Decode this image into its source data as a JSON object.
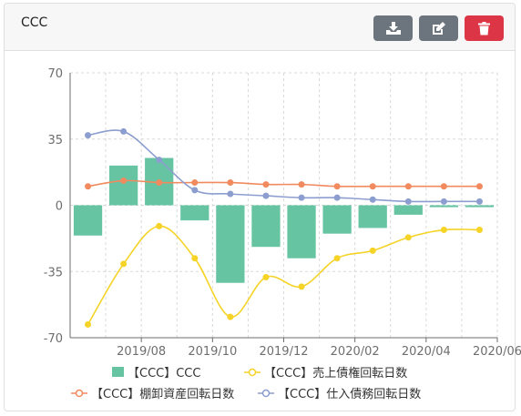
{
  "card": {
    "title": "CCC"
  },
  "toolbar": {
    "download_icon": "download-icon",
    "edit_icon": "edit-icon",
    "delete_icon": "trash-icon"
  },
  "colors": {
    "bar": "#66c4a3",
    "sales_receivable": "#f5d327",
    "inventory": "#f18a5e",
    "payable": "#8c9ecf",
    "btn_gray": "#6c757d",
    "btn_red": "#dc3545"
  },
  "chart_data": {
    "type": "bar",
    "x_tick_labels": [
      "2019/08",
      "2019/10",
      "2019/12",
      "2020/02",
      "2020/04",
      "2020/06"
    ],
    "ylim": [
      -70,
      70
    ],
    "y_ticks": [
      70,
      35,
      0,
      -35,
      -70
    ],
    "grid": true,
    "legend_position": "bottom",
    "categories": [
      "2019/07",
      "2019/08",
      "2019/09",
      "2019/10",
      "2019/11",
      "2019/12",
      "2020/01",
      "2020/02",
      "2020/03",
      "2020/04",
      "2020/05",
      "2020/06"
    ],
    "series": [
      {
        "name": "【CCC】CCC",
        "type": "bar",
        "values": [
          -16,
          21,
          25,
          -8,
          -41,
          -22,
          -28,
          -15,
          -12,
          -5,
          -1,
          -1
        ]
      },
      {
        "name": "【CCC】売上債権回転日数",
        "type": "line",
        "values": [
          -63,
          -31,
          -11,
          -28,
          -59,
          -38,
          -43,
          -28,
          -24,
          -17,
          -13,
          -13
        ]
      },
      {
        "name": "【CCC】棚卸資産回転日数",
        "type": "line",
        "values": [
          10,
          13,
          12,
          12,
          12,
          11,
          11,
          10,
          10,
          10,
          10,
          10
        ]
      },
      {
        "name": "【CCC】仕入債務回転日数",
        "type": "line",
        "values": [
          37,
          39,
          24,
          8,
          6,
          5,
          4,
          4,
          3,
          2,
          2,
          2
        ]
      }
    ]
  }
}
